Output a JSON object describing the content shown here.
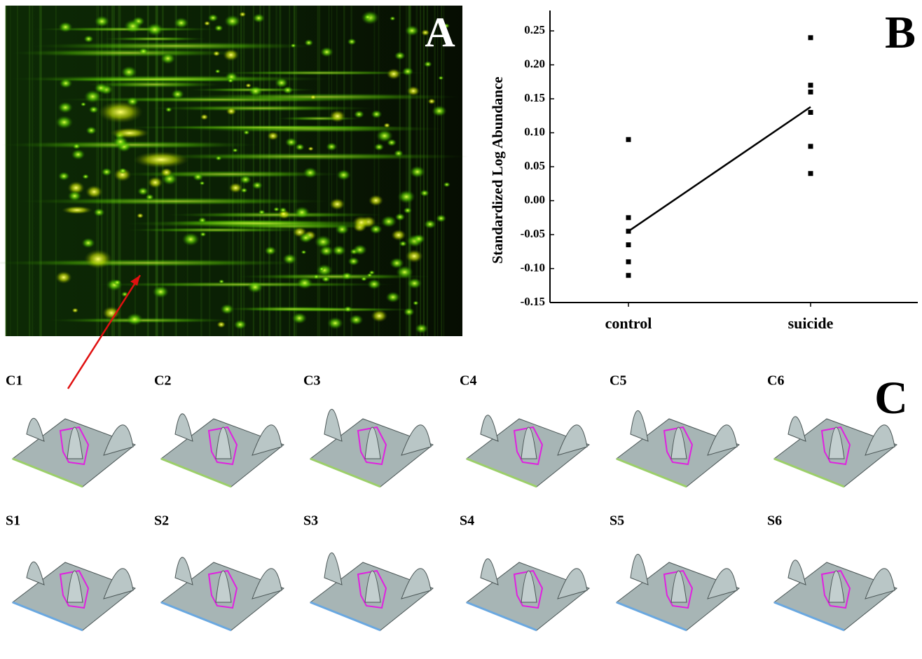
{
  "panels": {
    "a": "A",
    "b": "B",
    "c": "C"
  },
  "thumbnails": {
    "control": [
      "C1",
      "C2",
      "C3",
      "C4",
      "C5",
      "C6"
    ],
    "suicide": [
      "S1",
      "S2",
      "S3",
      "S4",
      "S5",
      "S6"
    ]
  },
  "chart_data": {
    "type": "scatter",
    "ylabel": "Standardized Log Abundance",
    "categories": [
      "control",
      "suicide"
    ],
    "ylim": [
      -0.15,
      0.28
    ],
    "yticks": [
      -0.15,
      {
        "value": -0.1,
        "label": "-0.10"
      },
      -0.05,
      {
        "value": 0,
        "label": "0.00"
      },
      0.05,
      {
        "value": 0.1,
        "label": "0.10"
      },
      0.15,
      {
        "value": 0.2,
        "label": "0.20"
      },
      0.25
    ],
    "series": [
      {
        "type": "scatter",
        "color": "#000000",
        "values": [
          [
            0.09,
            -0.025,
            -0.045,
            -0.065,
            -0.09,
            -0.11
          ],
          [
            0.24,
            0.17,
            0.16,
            0.13,
            0.08,
            0.04
          ]
        ]
      },
      {
        "type": "line",
        "color": "#000000",
        "values": [
          -0.045,
          0.138
        ]
      }
    ]
  }
}
